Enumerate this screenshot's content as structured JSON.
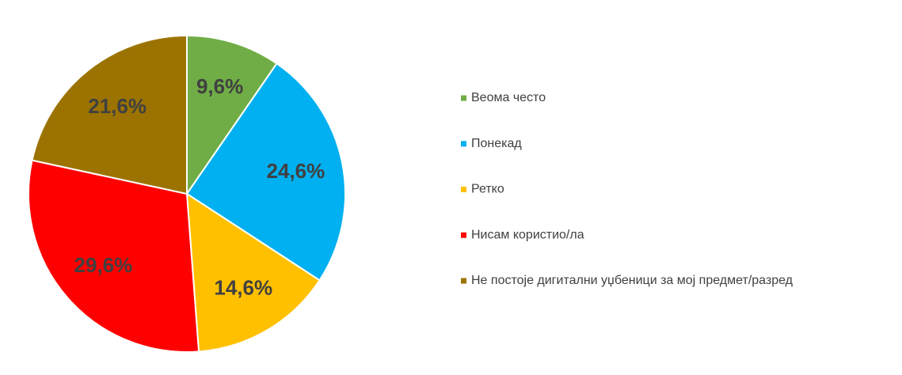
{
  "chart_data": {
    "type": "pie",
    "categories": [
      "Веома често",
      "Понекад",
      "Ретко",
      "Нисам користио/ла",
      "Не постоје дигитални уџбеници за мој предмет/разред"
    ],
    "values": [
      9.6,
      24.6,
      14.6,
      29.6,
      21.6
    ],
    "value_labels": [
      "9,6%",
      "24,6%",
      "14,6%",
      "29,6%",
      "21,6%"
    ],
    "colors": [
      "#70ad47",
      "#00b0f0",
      "#ffc000",
      "#ff0000",
      "#9c7300"
    ],
    "legend": "right"
  }
}
